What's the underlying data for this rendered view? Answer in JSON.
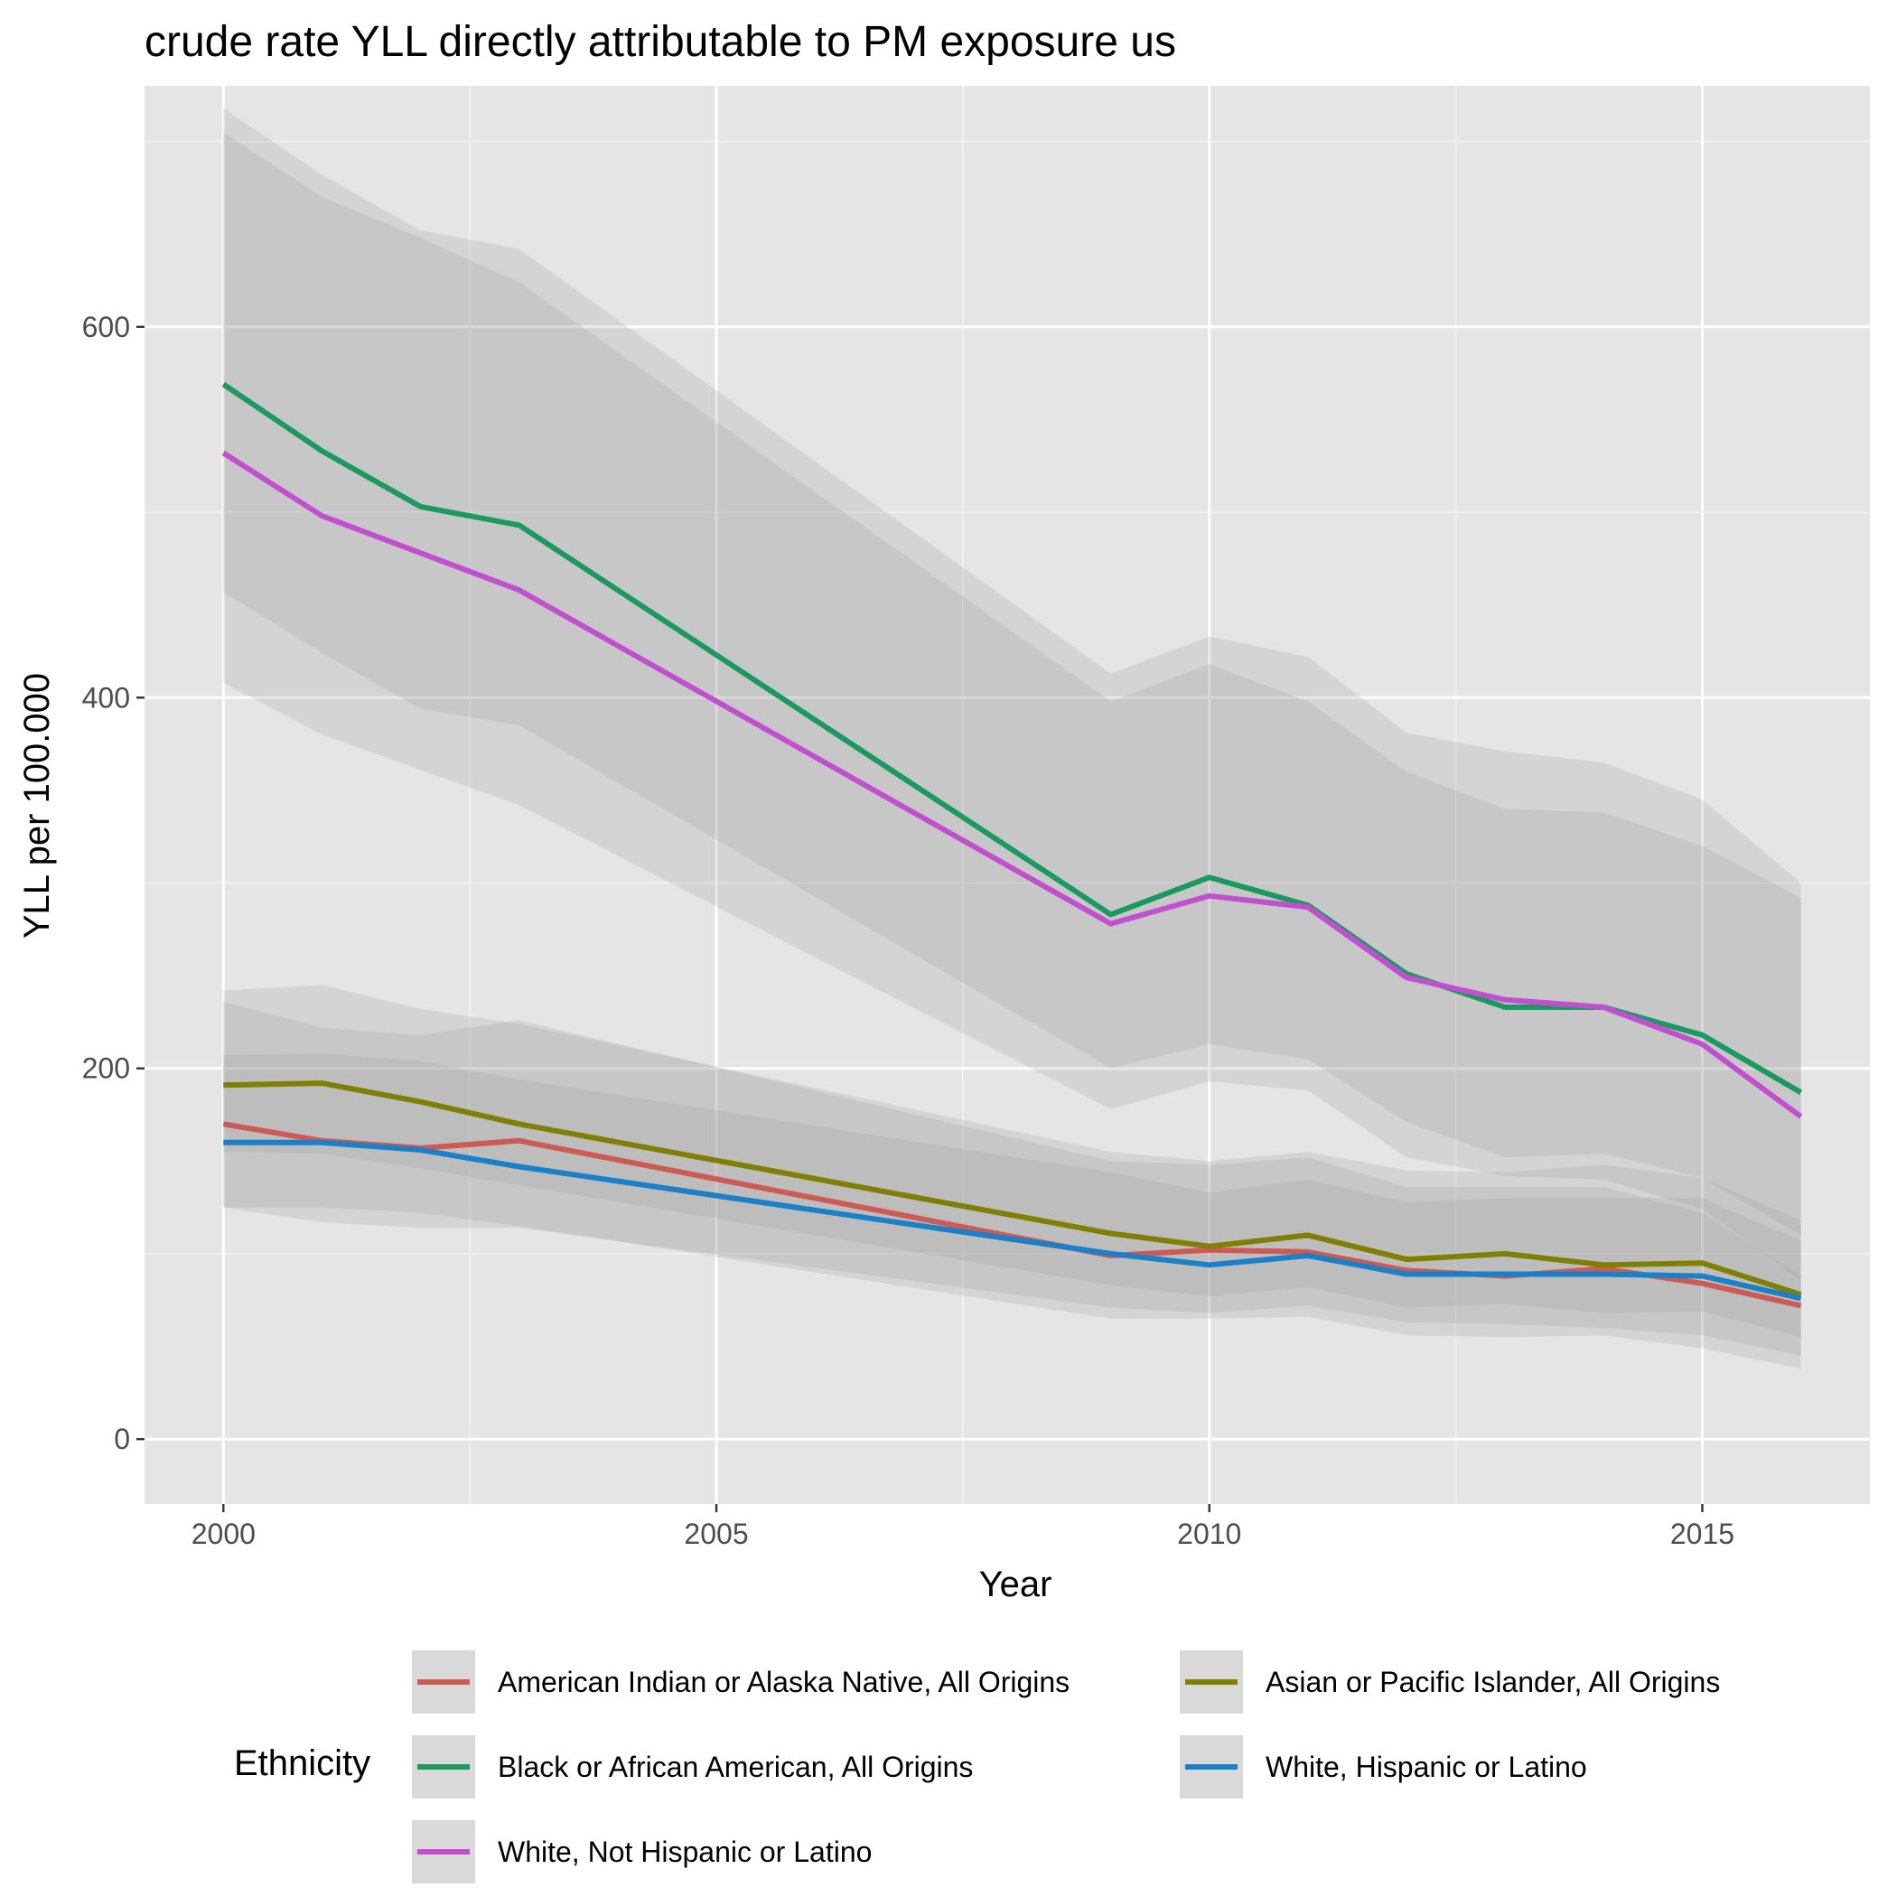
{
  "chart_data": {
    "type": "line",
    "title": "crude rate YLL directly attributable to PM exposure us",
    "xlabel": "Year",
    "ylabel": "YLL per 100.000",
    "xlim": [
      1999.2,
      2016.7
    ],
    "ylim": [
      -35,
      730
    ],
    "x_ticks": [
      2000,
      2005,
      2010,
      2015
    ],
    "x_tick_labels": [
      "2000",
      "2005",
      "2010",
      "2015"
    ],
    "y_ticks": [
      0,
      200,
      400,
      600
    ],
    "y_tick_labels": [
      "0",
      "200",
      "400",
      "600"
    ],
    "grid": true,
    "legend_title": "Ethnicity",
    "legend_position": "bottom",
    "x": [
      2000,
      2001,
      2002,
      2003,
      2009,
      2010,
      2011,
      2012,
      2013,
      2014,
      2015,
      2016
    ],
    "series": [
      {
        "name": "American Indian or Alaska Native, All Origins",
        "color": "#cd5a54",
        "values": [
          170,
          161,
          157,
          161,
          99,
          102,
          101,
          91,
          88,
          92,
          84,
          72
        ],
        "lower": [
          125,
          117,
          114,
          114,
          71,
          68,
          72,
          63,
          62,
          60,
          56,
          45
        ],
        "upper": [
          236,
          222,
          218,
          226,
          150,
          148,
          152,
          136,
          136,
          136,
          122,
          88
        ]
      },
      {
        "name": "Asian or Pacific Islander, All Origins",
        "color": "#808000",
        "values": [
          191,
          192,
          182,
          170,
          111,
          104,
          110,
          97,
          100,
          94,
          95,
          78
        ],
        "lower": [
          155,
          154,
          146,
          137,
          83,
          77,
          82,
          71,
          73,
          68,
          69,
          55
        ],
        "upper": [
          242,
          245,
          232,
          224,
          155,
          150,
          155,
          145,
          144,
          148,
          141,
          118
        ]
      },
      {
        "name": "Black or African American, All Origins",
        "color": "#1a9a60",
        "values": [
          569,
          533,
          503,
          493,
          283,
          303,
          288,
          251,
          233,
          233,
          218,
          187
        ],
        "lower": [
          457,
          424,
          394,
          385,
          200,
          213,
          205,
          171,
          152,
          154,
          141,
          110
        ],
        "upper": [
          718,
          682,
          652,
          642,
          413,
          433,
          422,
          381,
          371,
          365,
          345,
          300
        ]
      },
      {
        "name": "White, Hispanic or Latino",
        "color": "#1a80c8",
        "values": [
          160,
          160,
          156,
          147,
          100,
          94,
          99,
          89,
          89,
          89,
          88,
          76
        ],
        "lower": [
          125,
          125,
          122,
          115,
          65,
          65,
          66,
          56,
          55,
          56,
          49,
          38
        ],
        "upper": [
          207,
          208,
          204,
          194,
          144,
          133,
          140,
          128,
          130,
          130,
          130,
          107
        ]
      },
      {
        "name": "White, Not Hispanic or Latino",
        "color": "#c24fd0",
        "values": [
          532,
          498,
          478,
          458,
          278,
          293,
          287,
          249,
          237,
          233,
          213,
          174
        ],
        "lower": [
          408,
          380,
          361,
          342,
          178,
          193,
          188,
          152,
          142,
          140,
          124,
          86
        ],
        "upper": [
          705,
          670,
          648,
          624,
          398,
          418,
          398,
          360,
          340,
          338,
          320,
          292
        ]
      }
    ]
  }
}
